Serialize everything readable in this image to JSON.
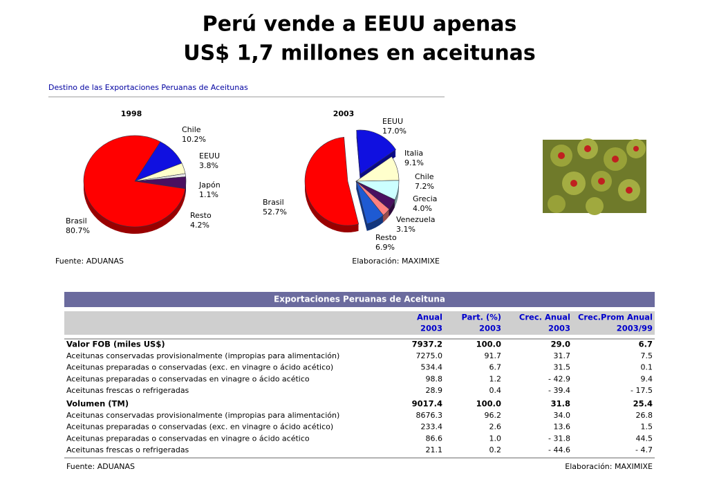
{
  "title": [
    "Perú vende a EEUU apenas",
    "US$ 1,7 millones en aceitunas"
  ],
  "chart_heading": "Destino de las Exportaciones Peruanas de Aceitunas",
  "chart_data": [
    {
      "type": "pie",
      "title": "1998",
      "categories": [
        "Chile",
        "EEUU",
        "Japón",
        "Resto",
        "Brasil"
      ],
      "values": [
        10.2,
        3.8,
        1.1,
        4.2,
        80.7
      ],
      "value_labels": [
        "10.2%",
        "3.8%",
        "1.1%",
        "4.2%",
        "80.7%"
      ],
      "colors": [
        "#1010e0",
        "#ffffcc",
        "#e8e8e8",
        "#4a1060",
        "#ff0000"
      ]
    },
    {
      "type": "pie",
      "title": "2003",
      "categories": [
        "EEUU",
        "Italia",
        "Chile",
        "Grecia",
        "Venezuela",
        "Resto",
        "Brasil"
      ],
      "values": [
        17.0,
        9.1,
        7.2,
        4.0,
        3.1,
        6.9,
        52.7
      ],
      "value_labels": [
        "17.0%",
        "9.1%",
        "7.2%",
        "4.0%",
        "3.1%",
        "6.9%",
        "52.7%"
      ],
      "colors": [
        "#1010e0",
        "#ffffcc",
        "#ccffff",
        "#4a1060",
        "#ff8080",
        "#1e5ad2",
        "#ff0000"
      ]
    }
  ],
  "chart_source": "Fuente: ADUANAS",
  "chart_credit": "Elaboración: MAXIMIXE",
  "table": {
    "title": "Exportaciones Peruanas de Aceituna",
    "header": [
      [
        "Anual",
        "Part. (%)",
        "Crec. Anual",
        "Crec.Prom Anual"
      ],
      [
        "2003",
        "2003",
        "2003",
        "2003/99"
      ]
    ],
    "sections": [
      {
        "total": [
          "Valor FOB (miles US$)",
          "7937.2",
          "100.0",
          "29.0",
          "6.7"
        ],
        "rows": [
          [
            "Aceitunas conservadas provisionalmente (impropias para alimentación)",
            "7275.0",
            "91.7",
            "31.7",
            "7.5"
          ],
          [
            "Aceitunas preparadas o conservadas (exc. en vinagre o ácido acético)",
            "534.4",
            "6.7",
            "31.5",
            "0.1"
          ],
          [
            "Aceitunas preparadas o conservadas en vinagre o ácido acético",
            "98.8",
            "1.2",
            "- 42.9",
            "9.4"
          ],
          [
            "Aceitunas frescas o refrigeradas",
            "28.9",
            "0.4",
            "- 39.4",
            "- 17.5"
          ]
        ]
      },
      {
        "total": [
          "Volumen (TM)",
          "9017.4",
          "100.0",
          "31.8",
          "25.4"
        ],
        "rows": [
          [
            "Aceitunas conservadas provisionalmente (impropias para alimentación)",
            "8676.3",
            "96.2",
            "34.0",
            "26.8"
          ],
          [
            "Aceitunas preparadas o conservadas (exc. en vinagre o ácido acético)",
            "233.4",
            "2.6",
            "13.6",
            "1.5"
          ],
          [
            "Aceitunas preparadas o conservadas en vinagre o ácido acético",
            "86.6",
            "1.0",
            "- 31.8",
            "44.5"
          ],
          [
            "Aceitunas frescas o refrigeradas",
            "21.1",
            "0.2",
            "- 44.6",
            "- 4.7"
          ]
        ]
      }
    ],
    "source": "Fuente: ADUANAS",
    "credit": "Elaboración: MAXIMIXE"
  }
}
